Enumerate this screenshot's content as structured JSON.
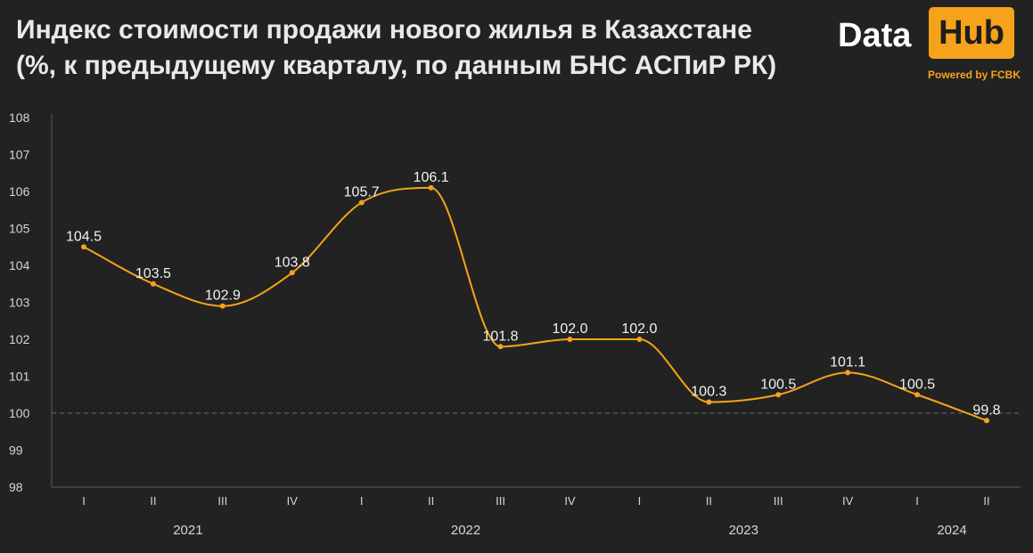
{
  "header": {
    "title_line1": "Индекс стоимости продажи нового жилья в Казахстане",
    "title_line2": "(%, к предыдущему кварталу, по данным БНС АСПиР РК)"
  },
  "logo": {
    "part1": "Data",
    "part2": "Hub",
    "powered": "Powered by FCBK"
  },
  "colors": {
    "background": "#222222",
    "line": "#f7a21b",
    "reference_line": "#6a6a6a",
    "text": "#e9e9e9"
  },
  "chart_data": {
    "type": "line",
    "title": "Индекс стоимости продажи нового жилья в Казахстане (%, к предыдущему кварталу, по данным БНС АСПиР РК)",
    "categories": [
      "I",
      "II",
      "III",
      "IV",
      "I",
      "II",
      "III",
      "IV",
      "I",
      "II",
      "III",
      "IV",
      "I",
      "II"
    ],
    "years": [
      {
        "label": "2021",
        "start": 0,
        "end": 3
      },
      {
        "label": "2022",
        "start": 4,
        "end": 7
      },
      {
        "label": "2023",
        "start": 8,
        "end": 11
      },
      {
        "label": "2024",
        "start": 12,
        "end": 13
      }
    ],
    "series": [
      {
        "values": [
          104.5,
          103.5,
          102.9,
          103.8,
          105.7,
          106.1,
          101.8,
          102.0,
          102.0,
          100.3,
          100.5,
          101.1,
          100.5,
          99.8
        ]
      }
    ],
    "data_labels": [
      "104.5",
      "103.5",
      "102.9",
      "103.8",
      "105.7",
      "106.1",
      "101.8",
      "102.0",
      "102.0",
      "100.3",
      "100.5",
      "101.1",
      "100.5",
      "99.8"
    ],
    "ylim": [
      98,
      108
    ],
    "yticks": [
      98,
      99,
      100,
      101,
      102,
      103,
      104,
      105,
      106,
      107,
      108
    ],
    "reference_line": 100,
    "xlabel": "",
    "ylabel": "",
    "grid": false
  }
}
